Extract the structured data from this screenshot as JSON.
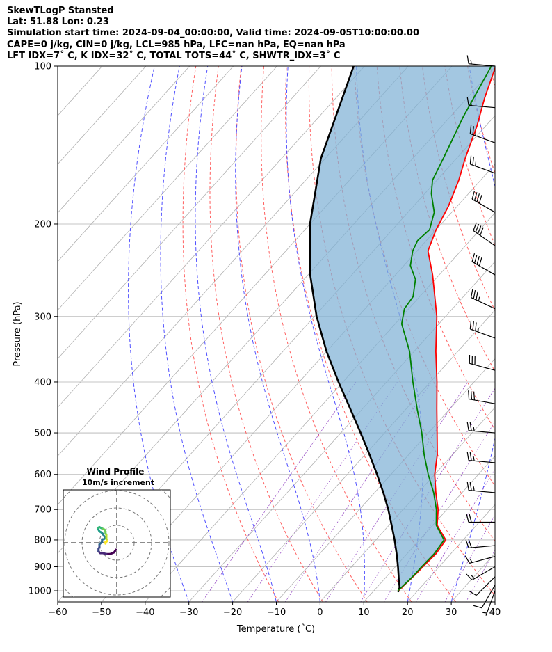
{
  "header": {
    "line1": "SkewTLogP Stansted",
    "line2": "Lat: 51.88   Lon: 0.23",
    "line3": "Simulation start time: 2024-09-04_00:00:00, Valid time: 2024-09-05T10:00:00.00",
    "line4": "CAPE=0 j/kg, CIN=0 j/kg, LCL=985 hPa, LFC=nan hPa, EQ=nan hPa",
    "line5": "LFT IDX=7˚ C, K IDX=32˚ C, TOTAL TOTS=44˚ C, SHWTR_IDX=3˚ C"
  },
  "chart_data": {
    "type": "line",
    "subtype": "skew-t log-p",
    "xlabel": "Temperature (˚C)",
    "ylabel": "Pressure (hPa)",
    "xlim": [
      -60,
      40
    ],
    "ylim": [
      1050,
      100
    ],
    "yscale": "log",
    "x_ticks": [
      -60,
      -50,
      -40,
      -30,
      -20,
      -10,
      0,
      10,
      20,
      30,
      40
    ],
    "y_ticks": [
      1000,
      900,
      800,
      700,
      600,
      500,
      400,
      300,
      200,
      100
    ],
    "grid": true,
    "series": [
      {
        "role": "temperature",
        "color": "#ff0000",
        "pressure": [
          1000,
          975,
          950,
          925,
          900,
          850,
          800,
          750,
          700,
          650,
          600,
          550,
          500,
          450,
          400,
          350,
          300,
          250,
          225,
          205,
          185,
          165,
          150,
          130,
          115,
          100
        ],
        "temp_c": [
          15.6,
          15.8,
          16.0,
          16.2,
          16.3,
          16.6,
          16.0,
          11.0,
          8.0,
          4.0,
          0.0,
          -3.5,
          -8.0,
          -13.0,
          -18.5,
          -25.0,
          -32.0,
          -41.5,
          -47.5,
          -50.0,
          -52.0,
          -55.0,
          -58.0,
          -62.0,
          -66.0,
          -70.0
        ]
      },
      {
        "role": "dewpoint",
        "color": "#008000",
        "pressure": [
          1000,
          975,
          950,
          925,
          900,
          850,
          800,
          750,
          700,
          650,
          600,
          550,
          500,
          450,
          400,
          350,
          310,
          290,
          275,
          255,
          240,
          225,
          215,
          205,
          190,
          175,
          165,
          150,
          125,
          100
        ],
        "temp_c": [
          15.5,
          15.7,
          15.9,
          16.0,
          16.0,
          16.2,
          15.6,
          10.8,
          7.6,
          3.5,
          -1.5,
          -6.5,
          -11.5,
          -17.5,
          -24.0,
          -31.0,
          -38.5,
          -41.0,
          -41.5,
          -44.5,
          -48.5,
          -51.0,
          -52.0,
          -51.5,
          -54.0,
          -58.5,
          -61.0,
          -63.0,
          -67.0,
          -71.0
        ]
      },
      {
        "role": "parcel",
        "color": "#000000",
        "pressure": [
          1005,
          985,
          950,
          900,
          850,
          800,
          750,
          700,
          650,
          600,
          550,
          500,
          450,
          400,
          350,
          300,
          250,
          200,
          150,
          100
        ],
        "temp_c": [
          15.8,
          15.2,
          13.3,
          10.6,
          7.6,
          4.3,
          0.6,
          -3.4,
          -8.0,
          -13.2,
          -19.0,
          -25.5,
          -32.8,
          -41.0,
          -50.0,
          -59.5,
          -69.5,
          -80.0,
          -91.0,
          -102.5
        ]
      }
    ],
    "dry_adiabat_theta_k": [
      260,
      270,
      280,
      290,
      300,
      310,
      320,
      330,
      340,
      350,
      360,
      370,
      380,
      390,
      400,
      410,
      420,
      430,
      440,
      450,
      460,
      470,
      480,
      490,
      500
    ],
    "moist_adiabat_start_c": [
      -30,
      -20,
      -10,
      0,
      10,
      20,
      30,
      40,
      50
    ],
    "mixing_ratio_lines_g_kg": [
      0.4,
      1,
      2,
      4,
      7,
      10,
      16,
      24,
      32
    ],
    "wind_barbs": {
      "pressure": [
        100,
        120,
        140,
        160,
        190,
        220,
        250,
        290,
        330,
        380,
        440,
        500,
        570,
        650,
        740,
        820,
        860,
        900,
        940,
        975,
        1000
      ],
      "speed_kt": [
        15,
        15,
        25,
        25,
        40,
        40,
        40,
        35,
        35,
        30,
        30,
        25,
        25,
        25,
        20,
        20,
        15,
        15,
        10,
        10,
        5
      ],
      "direction_deg": [
        275,
        275,
        290,
        290,
        300,
        305,
        300,
        295,
        290,
        285,
        280,
        275,
        275,
        275,
        270,
        265,
        255,
        240,
        225,
        210,
        200
      ]
    },
    "hodograph": {
      "title": "Wind Profile",
      "subtitle": "10m/s increment",
      "rings_ms": [
        10,
        20,
        30,
        40
      ],
      "u_ms": [
        -1,
        -3,
        -5,
        -8,
        -12,
        -16,
        -19,
        -20,
        -21,
        -21,
        -21,
        -20,
        -20,
        -18,
        -17,
        -17,
        -15,
        -13,
        -15,
        -16,
        -18,
        -20,
        -21,
        -22,
        -22,
        -22,
        -20,
        -18,
        -16,
        -14,
        -13,
        -13,
        -12,
        -12,
        -12,
        -12,
        -11,
        -12,
        -13,
        -13,
        -13
      ],
      "v_ms": [
        -8,
        -11,
        -12,
        -13,
        -13,
        -12,
        -12,
        -11,
        -10,
        -9,
        -7,
        -5,
        -2,
        0,
        1,
        4,
        4,
        6,
        8,
        10,
        12,
        13,
        15,
        16,
        17,
        17,
        18,
        17,
        16,
        15,
        13,
        11,
        9,
        7,
        5,
        4,
        2,
        1,
        1,
        0,
        -1
      ],
      "colormap": "viridis"
    }
  }
}
